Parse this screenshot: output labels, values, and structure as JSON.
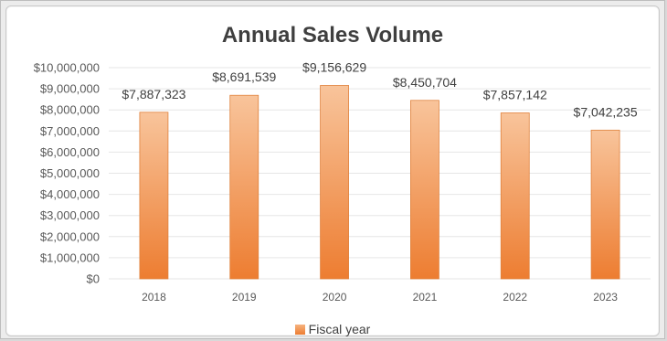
{
  "chart_data": {
    "type": "bar",
    "title": "Annual Sales Volume",
    "categories": [
      "2018",
      "2019",
      "2020",
      "2021",
      "2022",
      "2023"
    ],
    "series": [
      {
        "name": "Fiscal year",
        "values": [
          7887323,
          8691539,
          9156629,
          8450704,
          7857142,
          7042235
        ],
        "labels": [
          "$7,887,323",
          "$8,691,539",
          "$9,156,629",
          "$8,450,704",
          "$7,857,142",
          "$7,042,235"
        ]
      }
    ],
    "ylim": [
      0,
      10000000
    ],
    "yticks": [
      "$0",
      "$1,000,000",
      "$2,000,000",
      "$3,000,000",
      "$4,000,000",
      "$5,000,000",
      "$6,000,000",
      "$7,000,000",
      "$8,000,000",
      "$9,000,000",
      "$10,000,000"
    ],
    "xlabel": "",
    "ylabel": "",
    "grid": true,
    "legend_position": "bottom",
    "colors": {
      "bar_top": "#f8c49b",
      "bar_bottom": "#ed7d31",
      "bar_edge": "#e0823d",
      "grid": "#e6e6e6"
    }
  }
}
